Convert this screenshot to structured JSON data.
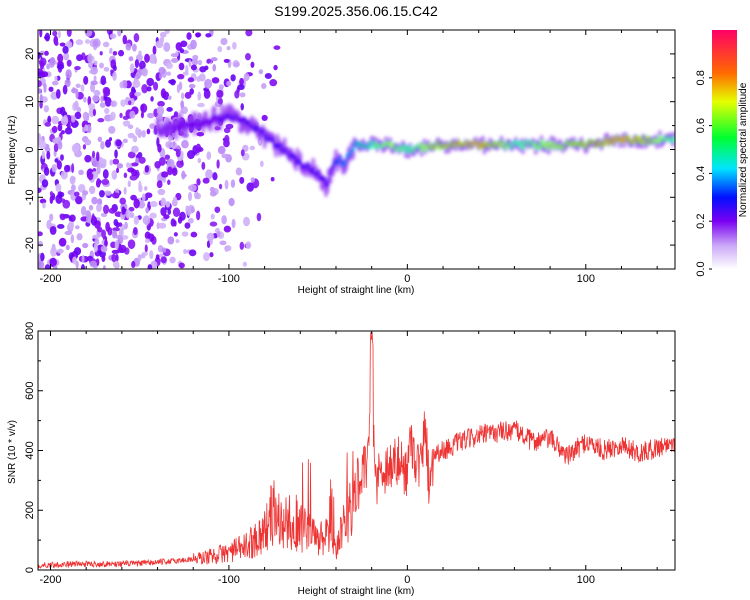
{
  "title": "S199.2025.356.06.15.C42",
  "chart_data": [
    {
      "type": "heatmap",
      "xlabel": "Height of straight line (km)",
      "ylabel": "Frequency (Hz)",
      "xlim": [
        -207,
        150
      ],
      "ylim": [
        -25,
        25
      ],
      "xticks": [
        -200,
        -100,
        0,
        100
      ],
      "yticks": [
        -20,
        -10,
        0,
        10,
        20
      ],
      "xtick_labels": [
        "-200",
        "-100",
        "0",
        "100"
      ],
      "ytick_labels": [
        "-20",
        "-10",
        "0",
        "10",
        "20"
      ],
      "colorbar": {
        "label": "Normalized spectral amplitude",
        "range": [
          0,
          1
        ],
        "ticks": [
          0.0,
          0.2,
          0.4,
          0.6,
          0.8
        ],
        "tick_labels": [
          "0.0",
          "0.2",
          "0.4",
          "0.6",
          "0.8"
        ]
      },
      "ridge": {
        "description": "dominant frequency track",
        "x": [
          -140,
          -125,
          -110,
          -100,
          -90,
          -80,
          -70,
          -60,
          -50,
          -45,
          -40,
          -35,
          -30,
          -20,
          -10,
          0,
          20,
          40,
          60,
          80,
          100,
          120,
          150
        ],
        "freq": [
          4,
          5,
          6,
          7,
          6,
          3,
          0,
          -3,
          -5,
          -7,
          -2,
          -3,
          1,
          1,
          1,
          0,
          1,
          1,
          1,
          1,
          1,
          2,
          2
        ],
        "amplitude": [
          0.15,
          0.2,
          0.2,
          0.25,
          0.25,
          0.3,
          0.3,
          0.3,
          0.3,
          0.25,
          0.35,
          0.4,
          0.45,
          0.6,
          0.7,
          0.6,
          0.8,
          0.9,
          0.6,
          0.7,
          0.8,
          0.9,
          0.6
        ]
      },
      "noise_region_x": [
        -207,
        -110
      ]
    },
    {
      "type": "line",
      "xlabel": "Height of straight line (km)",
      "ylabel": "SNR (10 * v/v)",
      "xlim": [
        -207,
        150
      ],
      "ylim": [
        0,
        800
      ],
      "xticks": [
        -200,
        -100,
        0,
        100
      ],
      "yticks": [
        0,
        200,
        400,
        600,
        800
      ],
      "xtick_labels": [
        "-200",
        "-100",
        "0",
        "100"
      ],
      "ytick_labels": [
        "0",
        "200",
        "400",
        "600",
        "800"
      ],
      "color": "#ee3333",
      "series": [
        {
          "name": "SNR",
          "x": [
            -207,
            -190,
            -170,
            -150,
            -130,
            -115,
            -100,
            -90,
            -80,
            -75,
            -70,
            -65,
            -60,
            -55,
            -50,
            -45,
            -40,
            -35,
            -30,
            -25,
            -22,
            -20,
            -18,
            -15,
            -10,
            -5,
            0,
            2,
            5,
            8,
            10,
            12,
            15,
            20,
            30,
            40,
            50,
            60,
            70,
            80,
            90,
            100,
            110,
            120,
            130,
            140,
            150
          ],
          "y": [
            15,
            20,
            20,
            22,
            30,
            40,
            60,
            80,
            130,
            200,
            150,
            160,
            140,
            120,
            100,
            110,
            60,
            160,
            260,
            320,
            350,
            700,
            300,
            330,
            350,
            360,
            330,
            450,
            360,
            350,
            500,
            300,
            390,
            400,
            430,
            450,
            460,
            470,
            430,
            440,
            380,
            430,
            400,
            420,
            390,
            410,
            430
          ]
        }
      ]
    }
  ]
}
